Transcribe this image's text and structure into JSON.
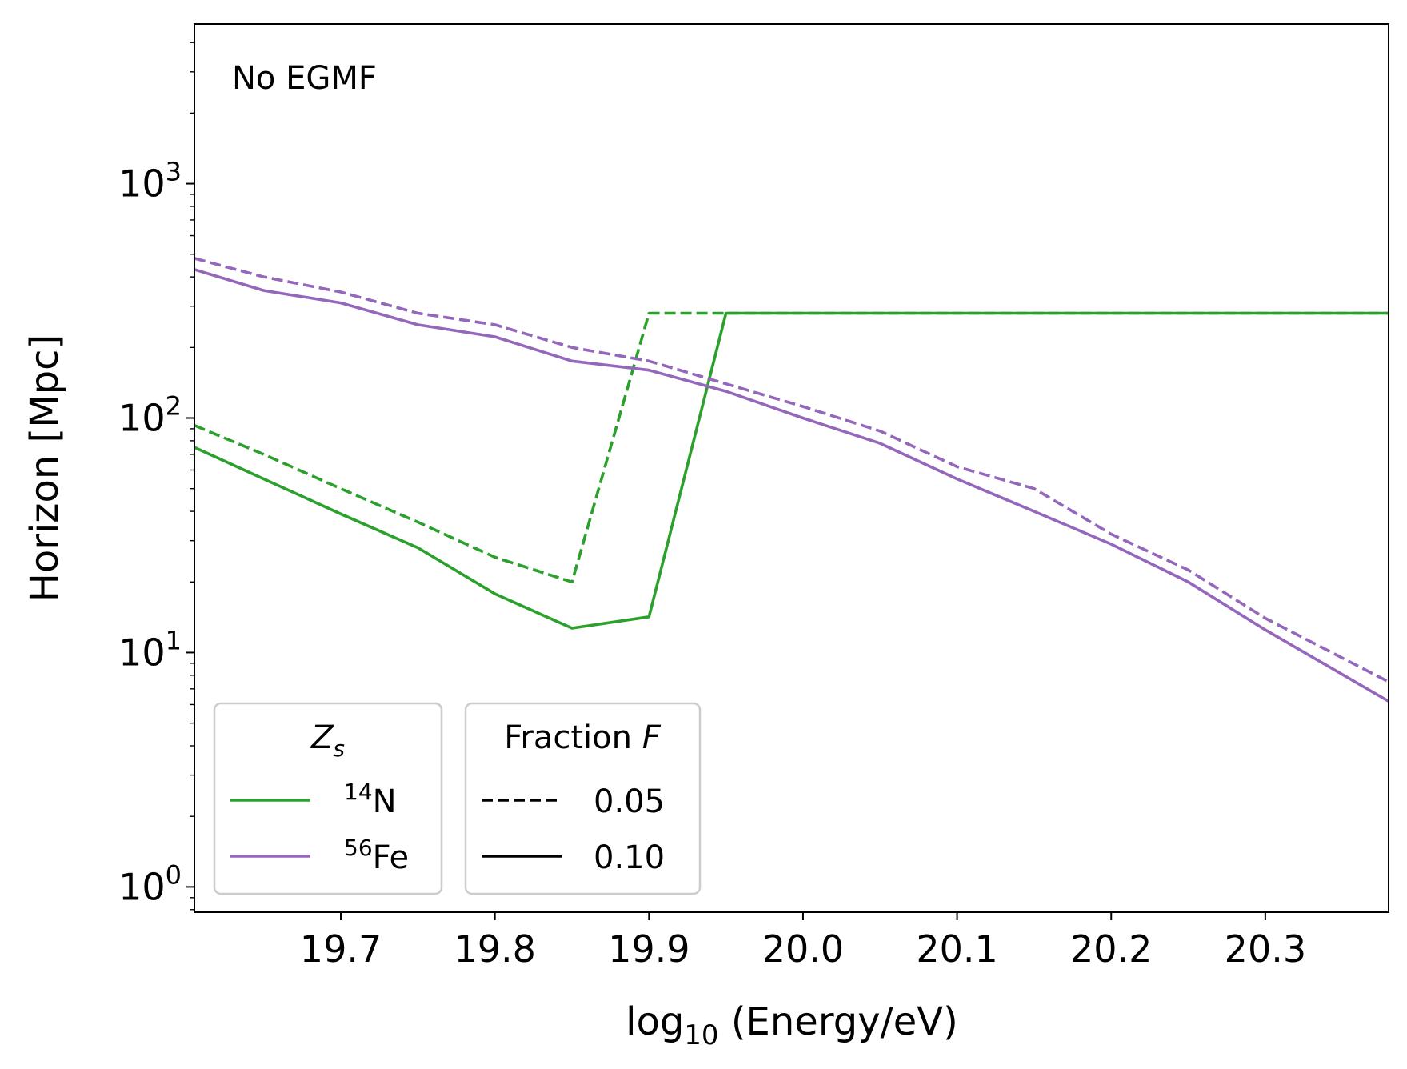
{
  "chart_data": {
    "type": "line",
    "title": "",
    "annotation": "No EGMF",
    "xlabel": "log₁₀ (Energy/eV)",
    "ylabel": "Horizon [Mpc]",
    "xlim": [
      19.605,
      20.38
    ],
    "ylim": [
      0.78,
      4800
    ],
    "yscale": "log",
    "grid": false,
    "xticks": [
      19.7,
      19.8,
      19.9,
      20.0,
      20.1,
      20.2,
      20.3
    ],
    "xtick_labels": [
      "19.7",
      "19.8",
      "19.9",
      "20.0",
      "20.1",
      "20.2",
      "20.3"
    ],
    "yticks": [
      1,
      10,
      100,
      1000
    ],
    "ytick_labels": [
      {
        "base": "10",
        "exp": "0"
      },
      {
        "base": "10",
        "exp": "1"
      },
      {
        "base": "10",
        "exp": "2"
      },
      {
        "base": "10",
        "exp": "3"
      }
    ],
    "colors": {
      "N14": "#2ca02c",
      "Fe56": "#9467bd",
      "black": "#000000"
    },
    "series": [
      {
        "name": "14N, F=0.05",
        "color": "#2ca02c",
        "dash": true,
        "x": [
          19.605,
          19.65,
          19.7,
          19.75,
          19.8,
          19.85,
          19.9,
          19.95,
          20.0,
          20.1,
          20.2,
          20.3,
          20.38
        ],
        "y": [
          93,
          70,
          50,
          36,
          25.5,
          20,
          280,
          280,
          280,
          280,
          280,
          280,
          280
        ]
      },
      {
        "name": "14N, F=0.10",
        "color": "#2ca02c",
        "dash": false,
        "x": [
          19.605,
          19.65,
          19.7,
          19.75,
          19.8,
          19.85,
          19.9,
          19.95,
          20.0,
          20.1,
          20.2,
          20.3,
          20.38
        ],
        "y": [
          75,
          55,
          39,
          28,
          17.8,
          12.7,
          14.2,
          280,
          280,
          280,
          280,
          280,
          280
        ]
      },
      {
        "name": "56Fe, F=0.05",
        "color": "#9467bd",
        "dash": true,
        "x": [
          19.605,
          19.65,
          19.7,
          19.75,
          19.8,
          19.85,
          19.9,
          19.95,
          20.0,
          20.05,
          20.1,
          20.15,
          20.2,
          20.25,
          20.3,
          20.38
        ],
        "y": [
          480,
          400,
          345,
          280,
          250,
          200,
          175,
          140,
          112,
          88,
          62,
          50,
          32,
          22.5,
          14,
          7.5
        ]
      },
      {
        "name": "56Fe, F=0.10",
        "color": "#9467bd",
        "dash": false,
        "x": [
          19.605,
          19.65,
          19.7,
          19.75,
          19.8,
          19.85,
          19.9,
          19.95,
          20.0,
          20.05,
          20.1,
          20.15,
          20.2,
          20.25,
          20.3,
          20.38
        ],
        "y": [
          430,
          350,
          310,
          250,
          222,
          175,
          160,
          130,
          100,
          78,
          55,
          40,
          29,
          20,
          12.5,
          6.2
        ]
      }
    ],
    "legends": [
      {
        "title_main": "Z",
        "title_sub": "s",
        "placement": "lower-left",
        "entries": [
          {
            "sup": "14",
            "label": "N",
            "color": "#2ca02c",
            "dash": false
          },
          {
            "sup": "56",
            "label": "Fe",
            "color": "#9467bd",
            "dash": false
          }
        ]
      },
      {
        "title_main": "Fraction ",
        "title_italic": "F",
        "placement": "lower-left",
        "entries": [
          {
            "label": "0.05",
            "color": "#000000",
            "dash": true
          },
          {
            "label": "0.10",
            "color": "#000000",
            "dash": false
          }
        ]
      }
    ]
  }
}
